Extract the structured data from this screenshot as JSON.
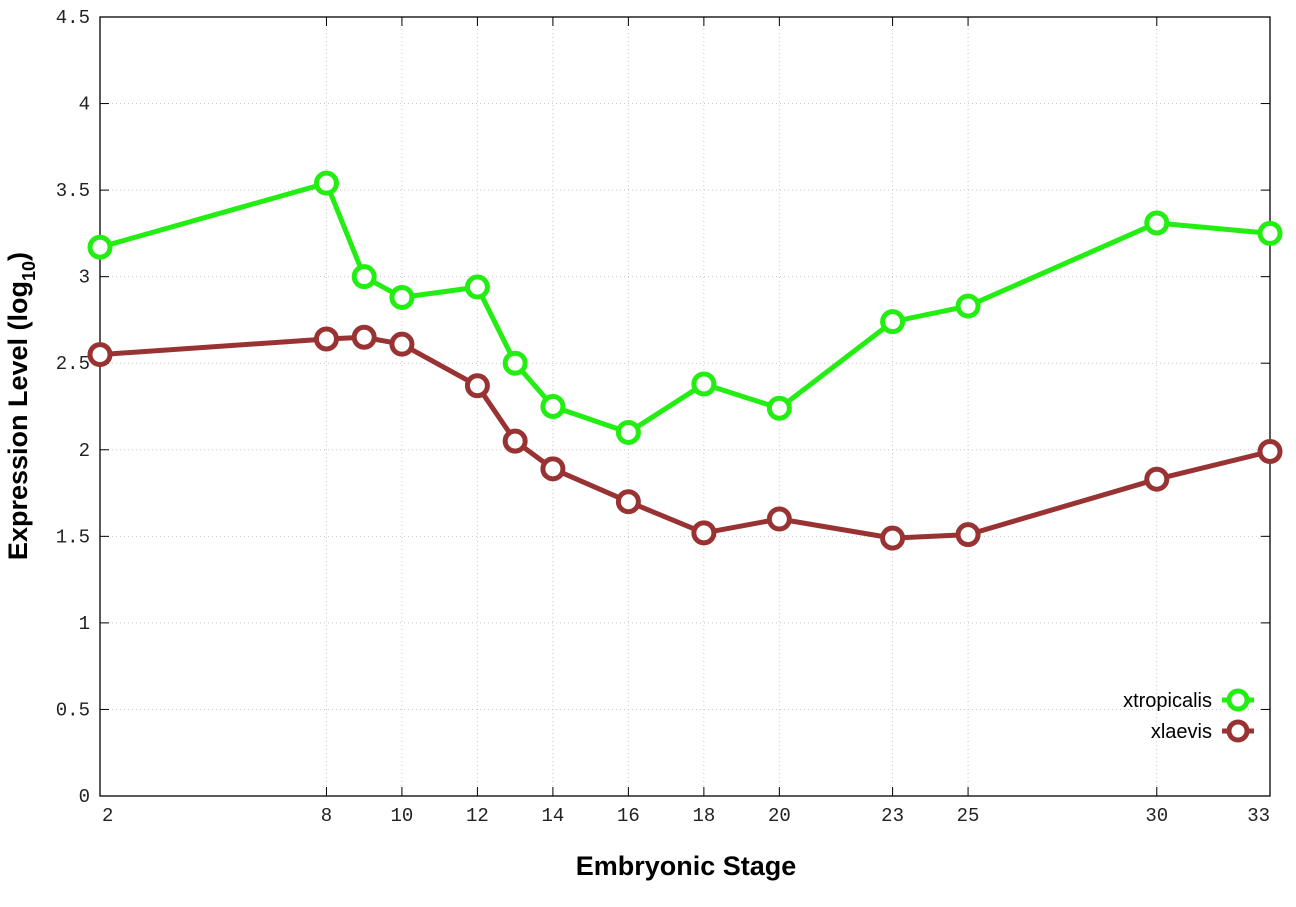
{
  "chart_data": {
    "type": "line",
    "xlabel": "Embryonic Stage",
    "ylabel_main": "Expression Level (log",
    "ylabel_sub": "10",
    "ylabel_close": ")",
    "x": [
      2,
      8,
      9,
      10,
      12,
      13,
      14,
      16,
      18,
      20,
      23,
      25,
      30,
      33
    ],
    "x_ticks": [
      "2",
      "8",
      "10",
      "12",
      "14",
      "16",
      "18",
      "20",
      "23",
      "25",
      "30",
      "33"
    ],
    "x_tick_values": [
      2,
      8,
      10,
      12,
      14,
      16,
      18,
      20,
      23,
      25,
      30,
      33
    ],
    "y_ticks": [
      "0",
      "0.5",
      "1",
      "1.5",
      "2",
      "2.5",
      "3",
      "3.5",
      "4",
      "4.5"
    ],
    "y_tick_values": [
      0,
      0.5,
      1,
      1.5,
      2,
      2.5,
      3,
      3.5,
      4,
      4.5
    ],
    "xlim": [
      2,
      33
    ],
    "ylim": [
      0,
      4.5
    ],
    "grid": true,
    "legend_position": "bottom-right",
    "series": [
      {
        "name": "xtropicalis",
        "color": "#22ee11",
        "values": [
          3.17,
          3.54,
          3.0,
          2.88,
          2.94,
          2.5,
          2.25,
          2.1,
          2.38,
          2.24,
          2.74,
          2.83,
          3.31,
          3.25
        ]
      },
      {
        "name": "xlaevis",
        "color": "#993333",
        "values": [
          2.55,
          2.64,
          2.65,
          2.61,
          2.37,
          2.05,
          1.89,
          1.7,
          1.52,
          1.6,
          1.49,
          1.51,
          1.83,
          1.99
        ]
      }
    ]
  }
}
